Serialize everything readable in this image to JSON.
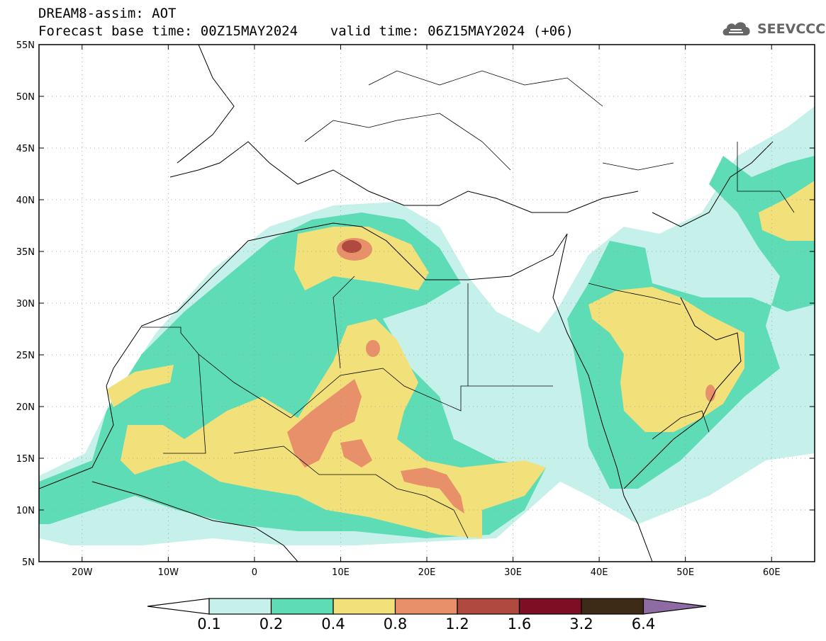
{
  "header": {
    "line1": "DREAM8-assim: AOT",
    "line2": "Forecast base time: 00Z15MAY2024    valid time: 06Z15MAY2024 (+06)"
  },
  "logo": {
    "text": "SEEVCCC",
    "icon": "cloud-icon"
  },
  "map": {
    "lon_range": [
      -25,
      65
    ],
    "lat_range": [
      5,
      55
    ],
    "lat_labels": [
      "55N",
      "50N",
      "45N",
      "40N",
      "35N",
      "30N",
      "25N",
      "20N",
      "15N",
      "10N",
      "5N"
    ],
    "lon_labels": [
      "20W",
      "10W",
      "0",
      "10E",
      "20E",
      "30E",
      "40E",
      "50E",
      "60E"
    ],
    "gridlines": "dotted"
  },
  "colorbar": {
    "labels": [
      "0.1",
      "0.2",
      "0.4",
      "0.8",
      "1.2",
      "1.6",
      "3.2",
      "6.4"
    ],
    "colors": [
      "#c6f1ea",
      "#5ddcb6",
      "#f2e07a",
      "#e8906a",
      "#b04a3e",
      "#7e0e24",
      "#3d2a17"
    ],
    "over_color": "#8f6ba3",
    "under_color": "#ffffff"
  }
}
